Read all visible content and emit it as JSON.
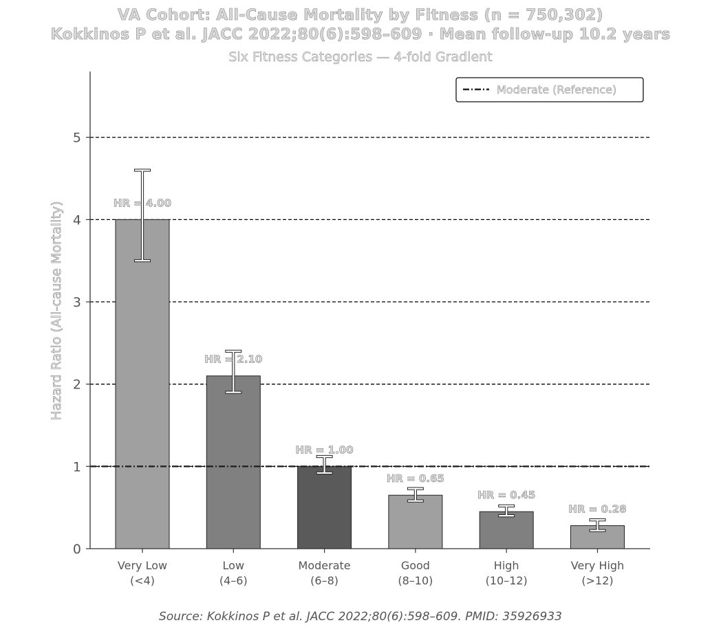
{
  "chart_data": {
    "type": "bar",
    "title": "VA Cohort: All-Cause Mortality by Fitness (n = 750,302)",
    "subtitle": "Kokkinos P et al. JACC 2022;80(6):598–609  ·  Mean follow-up 10.2 years",
    "subtitle2": "Six Fitness Categories — 4-fold Gradient",
    "xlabel": "",
    "ylabel": "Hazard Ratio (All-cause Mortality)",
    "ylim": [
      0,
      5.8
    ],
    "yticks": [
      "0",
      "1",
      "2",
      "3",
      "4",
      "5"
    ],
    "grid": "horizontal dashed",
    "categories": [
      [
        "Very Low",
        "(<4)"
      ],
      [
        "Low",
        "(4–6)"
      ],
      [
        "Moderate",
        "(6–8)"
      ],
      [
        "Good",
        "(8–10)"
      ],
      [
        "High",
        "(10–12)"
      ],
      [
        "Very High",
        "(>12)"
      ]
    ],
    "values": [
      4.0,
      2.1,
      1.0,
      0.65,
      0.45,
      0.28
    ],
    "ci_low": [
      3.5,
      1.9,
      0.92,
      0.58,
      0.4,
      0.22
    ],
    "ci_high": [
      4.6,
      2.4,
      1.12,
      0.73,
      0.52,
      0.35
    ],
    "data_labels": [
      "HR = 4.00",
      "HR = 2.10",
      "HR = 1.00",
      "HR = 0.65",
      "HR = 0.45",
      "HR = 0.28"
    ],
    "bar_colors": [
      "#a0a0a0",
      "#808080",
      "#5a5a5a",
      "#a0a0a0",
      "#808080",
      "#a0a0a0"
    ],
    "reference_line": {
      "value": 1.0,
      "label": "Moderate (Reference)"
    },
    "legend_position": "top-right"
  },
  "source": "Source: Kokkinos P et al. JACC 2022;80(6):598–609. PMID: 35926933"
}
